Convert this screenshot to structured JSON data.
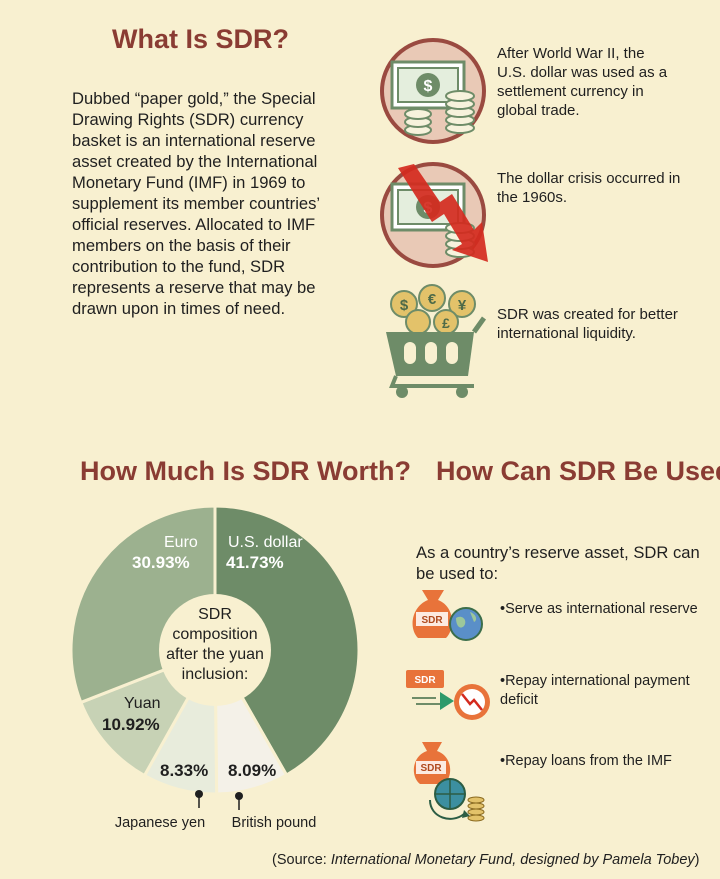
{
  "header": {
    "what_title": "What Is SDR?",
    "intro": "Dubbed “paper gold,” the Special Drawing Rights (SDR) currency basket is an international reserve asset created by the International Monetary Fund (IMF) in 1969 to supplement its member countries’ official reserves. Allocated to IMF members on the basis of their contribution to the fund, SDR represents a reserve that may be drawn upon in times of need."
  },
  "history": [
    {
      "text": "After World War II, the U.S. dollar was used as a settlement currency in global trade.",
      "icon": "dollar-coins-icon"
    },
    {
      "text": "The dollar crisis occurred in the 1960s.",
      "icon": "dollar-crisis-icon"
    },
    {
      "text": "SDR was created for better international liquidity.",
      "icon": "currency-cart-icon"
    }
  ],
  "worth": {
    "title": "How Much Is SDR Worth?",
    "center_lines": [
      "SDR",
      "composition",
      "after the yuan",
      "inclusion:"
    ],
    "callouts": [
      "Japanese yen",
      "British pound"
    ]
  },
  "chart_data": {
    "type": "pie",
    "title": "How Much Is SDR Worth?",
    "slices": [
      {
        "label": "U.S. dollar",
        "value": 41.73,
        "display": "41.73%",
        "color": "#6e8c68"
      },
      {
        "label": "British pound",
        "value": 8.09,
        "display": "8.09%",
        "color": "#f4f1e8"
      },
      {
        "label": "Japanese yen",
        "value": 8.33,
        "display": "8.33%",
        "color": "#e8ecdc"
      },
      {
        "label": "Yuan",
        "value": 10.92,
        "display": "10.92%",
        "color": "#c7d2b5"
      },
      {
        "label": "Euro",
        "value": 30.93,
        "display": "30.93%",
        "color": "#9cb18f"
      }
    ]
  },
  "usage": {
    "title": "How Can SDR Be Used?",
    "intro": "As a country’s reserve asset, SDR can be used to:",
    "items": [
      {
        "text": "•Serve as international reserve",
        "icon": "sdr-globe-icon",
        "tag": "SDR"
      },
      {
        "text": "•Repay international payment deficit",
        "icon": "sdr-decline-icon",
        "tag": "SDR"
      },
      {
        "text": "•Repay loans from the IMF",
        "icon": "sdr-exchange-icon",
        "tag": "SDR"
      }
    ]
  },
  "source": {
    "prefix": "(Source: ",
    "italic": "International Monetary Fund, designed by Pamela Tobey",
    "suffix": ")"
  },
  "colors": {
    "title": "#8a3c33",
    "background": "#f8f0d0",
    "icon_circle": "#e9c9b6",
    "icon_ring": "#9a4a40",
    "green": "#6e8c68",
    "red_arrow": "#d42a1e",
    "orange_bag": "#e8733a"
  }
}
